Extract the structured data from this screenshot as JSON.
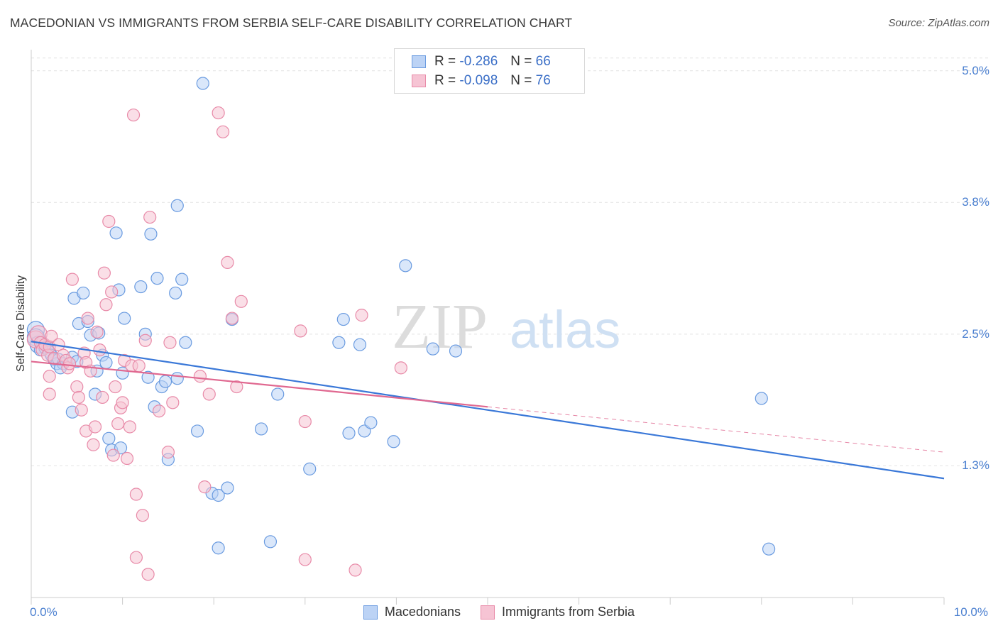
{
  "chart_data": {
    "type": "scatter",
    "title": "MACEDONIAN VS IMMIGRANTS FROM SERBIA SELF-CARE DISABILITY CORRELATION CHART",
    "source": "Source: ZipAtlas.com",
    "watermark": {
      "zip": "ZIP",
      "atlas": "atlas"
    },
    "ylabel": "Self-Care Disability",
    "xlim": [
      0,
      10
    ],
    "ylim": [
      0,
      5.2
    ],
    "x_tick_labels": {
      "min": "0.0%",
      "max": "10.0%"
    },
    "y_ticks": [
      {
        "value": 5.0,
        "label": "5.0%"
      },
      {
        "value": 3.75,
        "label": "3.8%"
      },
      {
        "value": 2.5,
        "label": "2.5%"
      },
      {
        "value": 1.25,
        "label": "1.3%"
      }
    ],
    "legend": {
      "rows": [
        {
          "r_label": "R =",
          "r_value": "-0.286",
          "n_label": "N =",
          "n_value": "66"
        },
        {
          "r_label": "R =",
          "r_value": "-0.098",
          "n_label": "N =",
          "n_value": "76"
        }
      ]
    },
    "series": [
      {
        "name": "Macedonians",
        "color": "#6a9be0",
        "fill": "#bcd3f5",
        "points": [
          [
            0.05,
            2.54
          ],
          [
            0.05,
            2.47
          ],
          [
            0.08,
            2.4
          ],
          [
            0.1,
            2.35
          ],
          [
            0.12,
            2.42
          ],
          [
            0.15,
            2.37
          ],
          [
            0.18,
            2.38
          ],
          [
            0.2,
            2.33
          ],
          [
            0.22,
            2.3
          ],
          [
            0.25,
            2.26
          ],
          [
            0.28,
            2.22
          ],
          [
            0.3,
            2.26
          ],
          [
            0.35,
            2.22
          ],
          [
            0.32,
            2.18
          ],
          [
            0.45,
            2.28
          ],
          [
            0.5,
            2.24
          ],
          [
            0.45,
            1.76
          ],
          [
            0.47,
            2.84
          ],
          [
            0.52,
            2.6
          ],
          [
            0.57,
            2.89
          ],
          [
            0.62,
            2.62
          ],
          [
            0.65,
            2.49
          ],
          [
            0.7,
            1.93
          ],
          [
            0.72,
            2.15
          ],
          [
            0.74,
            2.51
          ],
          [
            0.78,
            2.3
          ],
          [
            0.82,
            2.23
          ],
          [
            0.85,
            1.51
          ],
          [
            0.88,
            1.4
          ],
          [
            0.98,
            1.42
          ],
          [
            0.96,
            2.92
          ],
          [
            0.93,
            3.46
          ],
          [
            1.0,
            2.13
          ],
          [
            1.02,
            2.65
          ],
          [
            1.2,
            2.95
          ],
          [
            1.25,
            2.5
          ],
          [
            1.28,
            2.09
          ],
          [
            1.31,
            3.45
          ],
          [
            1.35,
            1.81
          ],
          [
            1.38,
            3.03
          ],
          [
            1.43,
            2.0
          ],
          [
            1.47,
            2.05
          ],
          [
            1.5,
            1.31
          ],
          [
            1.58,
            2.89
          ],
          [
            1.6,
            3.72
          ],
          [
            1.65,
            3.02
          ],
          [
            1.69,
            2.42
          ],
          [
            1.6,
            2.08
          ],
          [
            1.82,
            1.58
          ],
          [
            1.88,
            4.88
          ],
          [
            1.98,
            0.99
          ],
          [
            2.05,
            0.97
          ],
          [
            2.05,
            0.47
          ],
          [
            2.15,
            1.04
          ],
          [
            2.2,
            2.64
          ],
          [
            2.52,
            1.6
          ],
          [
            2.62,
            0.53
          ],
          [
            2.7,
            1.93
          ],
          [
            3.05,
            1.22
          ],
          [
            3.37,
            2.42
          ],
          [
            3.42,
            2.64
          ],
          [
            3.48,
            1.56
          ],
          [
            3.6,
            2.4
          ],
          [
            3.65,
            1.58
          ],
          [
            3.72,
            1.66
          ],
          [
            3.97,
            1.48
          ],
          [
            4.1,
            3.15
          ],
          [
            4.4,
            2.36
          ],
          [
            4.65,
            2.34
          ],
          [
            8.0,
            1.89
          ],
          [
            8.08,
            0.46
          ]
        ],
        "trend": {
          "x0": 0.0,
          "y0": 2.43,
          "x1": 10.0,
          "y1": 1.13,
          "solid_to": 10.0
        }
      },
      {
        "name": "Immigrants from Serbia",
        "color": "#e88aa8",
        "fill": "#f6c4d4",
        "points": [
          [
            0.05,
            2.45
          ],
          [
            0.08,
            2.5
          ],
          [
            0.1,
            2.42
          ],
          [
            0.12,
            2.35
          ],
          [
            0.15,
            2.4
          ],
          [
            0.18,
            2.3
          ],
          [
            0.2,
            2.38
          ],
          [
            0.22,
            2.48
          ],
          [
            0.25,
            2.27
          ],
          [
            0.3,
            2.4
          ],
          [
            0.35,
            2.3
          ],
          [
            0.38,
            2.25
          ],
          [
            0.4,
            2.18
          ],
          [
            0.42,
            2.22
          ],
          [
            0.2,
            2.1
          ],
          [
            0.2,
            1.93
          ],
          [
            0.45,
            3.02
          ],
          [
            0.5,
            2.0
          ],
          [
            0.52,
            1.9
          ],
          [
            0.55,
            1.78
          ],
          [
            0.58,
            2.32
          ],
          [
            0.6,
            2.23
          ],
          [
            0.6,
            1.58
          ],
          [
            0.62,
            2.65
          ],
          [
            0.65,
            2.15
          ],
          [
            0.68,
            1.45
          ],
          [
            0.7,
            1.62
          ],
          [
            0.72,
            2.52
          ],
          [
            0.75,
            2.35
          ],
          [
            0.78,
            1.9
          ],
          [
            0.8,
            3.08
          ],
          [
            0.82,
            2.78
          ],
          [
            0.85,
            3.57
          ],
          [
            0.88,
            2.9
          ],
          [
            0.9,
            1.35
          ],
          [
            0.92,
            2.0
          ],
          [
            0.95,
            1.65
          ],
          [
            0.98,
            1.8
          ],
          [
            1.0,
            1.85
          ],
          [
            1.02,
            2.25
          ],
          [
            1.05,
            1.32
          ],
          [
            1.08,
            1.62
          ],
          [
            1.1,
            2.2
          ],
          [
            1.12,
            4.58
          ],
          [
            1.15,
            0.98
          ],
          [
            1.15,
            0.38
          ],
          [
            1.18,
            2.2
          ],
          [
            1.22,
            0.78
          ],
          [
            1.25,
            2.44
          ],
          [
            1.28,
            0.22
          ],
          [
            1.3,
            3.61
          ],
          [
            1.4,
            1.77
          ],
          [
            1.5,
            1.38
          ],
          [
            1.52,
            2.42
          ],
          [
            1.55,
            1.85
          ],
          [
            1.85,
            2.1
          ],
          [
            1.9,
            1.05
          ],
          [
            1.95,
            1.93
          ],
          [
            2.05,
            4.6
          ],
          [
            2.1,
            4.42
          ],
          [
            2.15,
            3.18
          ],
          [
            2.2,
            2.65
          ],
          [
            2.25,
            2.0
          ],
          [
            2.3,
            2.81
          ],
          [
            2.95,
            2.53
          ],
          [
            3.0,
            1.67
          ],
          [
            3.0,
            0.36
          ],
          [
            3.55,
            0.26
          ],
          [
            3.62,
            2.68
          ],
          [
            4.05,
            2.18
          ]
        ],
        "trend": {
          "x0": 0.0,
          "y0": 2.24,
          "x1": 10.0,
          "y1": 1.38,
          "solid_to": 5.0
        }
      }
    ]
  }
}
